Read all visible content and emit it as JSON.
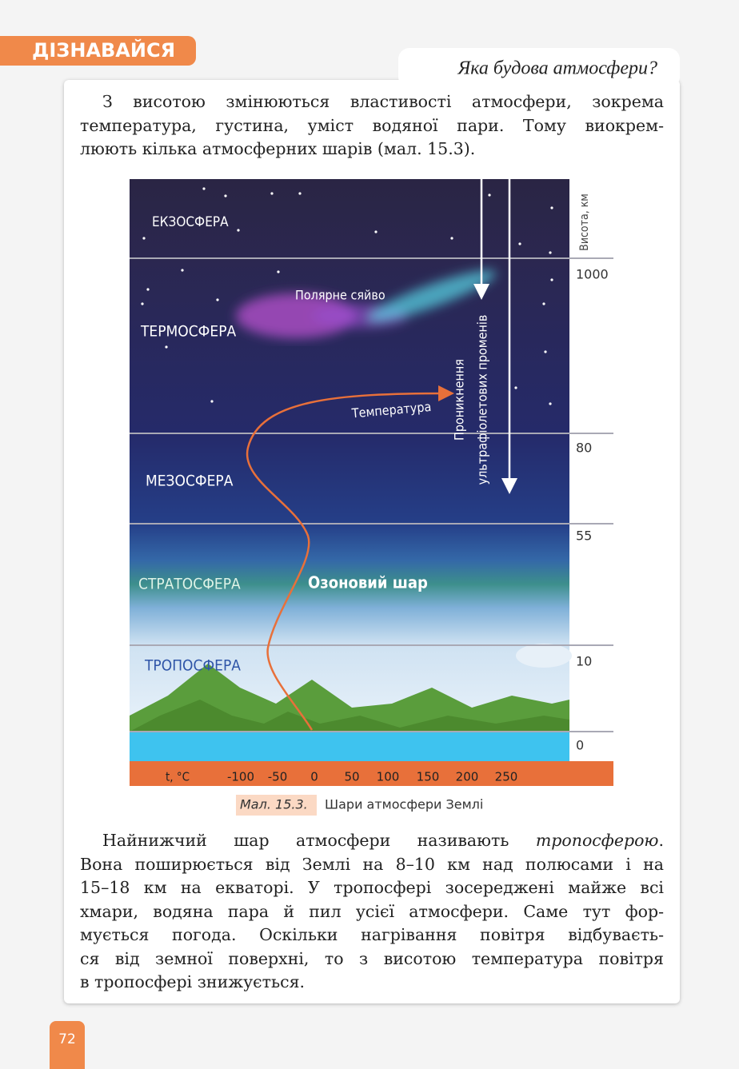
{
  "header": {
    "tab": "ДІЗНАВАЙСЯ",
    "topic": "Яка будова атмосфери?"
  },
  "paragraphs": [
    {
      "lines": [
        "З висотою змінюються властивості атмосфери, зокрема",
        "температура, густина, уміст водяної пари. Тому виокрем-",
        "люють кілька атмосферних шарів (мал. 15.3)."
      ]
    },
    {
      "lines": [
        [
          "Найнижчий шар атмосфери називають ",
          "тропосферою",
          "."
        ],
        "Вона поширюється від Землі на 8–10 км над полюсами і на",
        "15–18 км на екваторі. У тропосфері зосереджені майже всі",
        "хмари, водяна пара й пил усієї атмосфери. Саме тут фор-",
        "мується погода. Оскільки нагрівання повітря відбуваєть-",
        "ся від земної поверхні, то з висотою температура повітря",
        "в тропосфері знижується."
      ]
    }
  ],
  "figure": {
    "layers": [
      "ЕКЗОСФЕРА",
      "ТЕРМОСФЕРА",
      "МЕЗОСФЕРА",
      "СТРАТОСФЕРА",
      "ТРОПОСФЕРА"
    ],
    "aurora": "Полярне сяйво",
    "temperature": "Температура",
    "ozone": "Озоновий шар",
    "uv": [
      "Проникнення",
      "ультрафіолетових променів"
    ],
    "altitude_axis": {
      "title": "Висота, км",
      "ticks": [
        1000,
        80,
        55,
        10,
        0
      ]
    },
    "temperature_axis": {
      "title": "t, °C",
      "ticks": [
        -100,
        -50,
        0,
        50,
        100,
        150,
        200,
        250
      ]
    }
  },
  "caption": {
    "label": "Мал. 15.3.",
    "text": "Шари атмосфери Землі"
  },
  "page_number": "72"
}
